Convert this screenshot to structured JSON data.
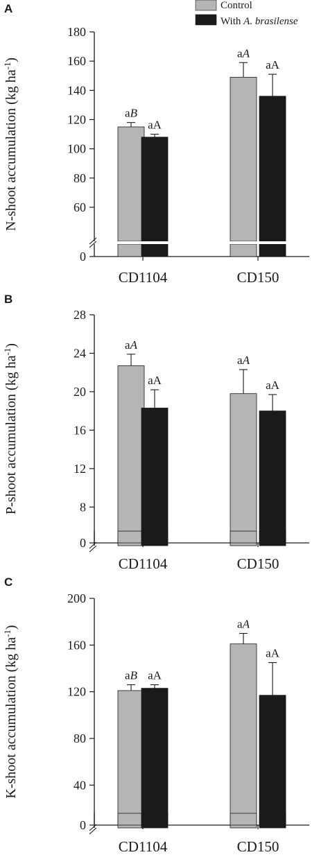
{
  "legend": {
    "items": [
      {
        "label": "Control",
        "label_italic": "",
        "color": "#b5b5b5"
      },
      {
        "label": "With ",
        "label_italic": "A. brasilense",
        "color": "#1a1a1a"
      }
    ]
  },
  "chart_data": [
    {
      "panel": "A",
      "type": "bar",
      "ylabel": "N-shoot accumulation (kg ha",
      "ylabel_sup": "-1",
      "ylabel_close": ")",
      "categories": [
        "CD1104",
        "CD150"
      ],
      "yticks": [
        0,
        60,
        80,
        100,
        120,
        140,
        160,
        180
      ],
      "ylim": [
        50,
        180
      ],
      "axis_break": true,
      "series": [
        {
          "name": "Control",
          "color": "#b5b5b5",
          "values": [
            115,
            149
          ],
          "errors": [
            3,
            10
          ],
          "labels": [
            {
              "pre": "a",
              "ital": "B"
            },
            {
              "pre": "a",
              "ital": "A"
            }
          ]
        },
        {
          "name": "With A. brasilense",
          "color": "#1a1a1a",
          "values": [
            108,
            136
          ],
          "errors": [
            2,
            15
          ],
          "labels": [
            {
              "pre": "aA",
              "ital": ""
            },
            {
              "pre": "aA",
              "ital": ""
            }
          ]
        }
      ]
    },
    {
      "panel": "B",
      "type": "bar",
      "ylabel": "P-shoot accumulation (kg ha",
      "ylabel_sup": "-1",
      "ylabel_close": ")",
      "categories": [
        "CD1104",
        "CD150"
      ],
      "yticks": [
        0,
        8,
        12,
        16,
        20,
        24,
        28
      ],
      "ylim": [
        6,
        28
      ],
      "axis_break": true,
      "series": [
        {
          "name": "Control",
          "color": "#b5b5b5",
          "values": [
            22.7,
            19.8
          ],
          "errors": [
            1.2,
            2.5
          ],
          "labels": [
            {
              "pre": "a",
              "ital": "A"
            },
            {
              "pre": "a",
              "ital": "A"
            }
          ]
        },
        {
          "name": "With A. brasilense",
          "color": "#1a1a1a",
          "values": [
            18.3,
            18.0
          ],
          "errors": [
            1.9,
            1.7
          ],
          "labels": [
            {
              "pre": "aA",
              "ital": ""
            },
            {
              "pre": "aA",
              "ital": ""
            }
          ]
        }
      ]
    },
    {
      "panel": "C",
      "type": "bar",
      "ylabel": "K-shoot accumulation (kg ha",
      "ylabel_sup": "-1",
      "ylabel_close": ")",
      "categories": [
        "CD1104",
        "CD150"
      ],
      "yticks": [
        0,
        40,
        80,
        120,
        160,
        200
      ],
      "ylim": [
        20,
        200
      ],
      "axis_break": true,
      "series": [
        {
          "name": "Control",
          "color": "#b5b5b5",
          "values": [
            121,
            161
          ],
          "errors": [
            5,
            9
          ],
          "labels": [
            {
              "pre": "a",
              "ital": "B"
            },
            {
              "pre": "a",
              "ital": "A"
            }
          ]
        },
        {
          "name": "With A. brasilense",
          "color": "#1a1a1a",
          "values": [
            123,
            117
          ],
          "errors": [
            3,
            28
          ],
          "labels": [
            {
              "pre": "aA",
              "ital": ""
            },
            {
              "pre": "aA",
              "ital": ""
            }
          ]
        }
      ]
    }
  ]
}
